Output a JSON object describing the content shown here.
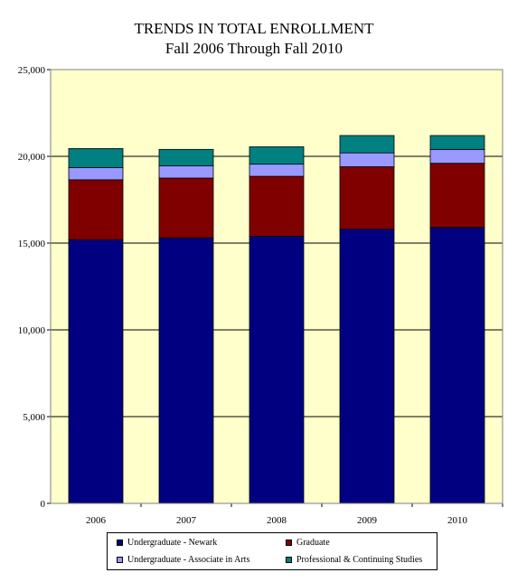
{
  "chart_data": {
    "type": "bar",
    "stacked": true,
    "title": "TRENDS IN TOTAL ENROLLMENT",
    "subtitle": "Fall 2006 Through Fall 2010",
    "categories": [
      "2006",
      "2007",
      "2008",
      "2009",
      "2010"
    ],
    "ylim": [
      0,
      25000
    ],
    "yticks": [
      0,
      5000,
      10000,
      15000,
      20000,
      25000
    ],
    "ytick_labels": [
      "0",
      "5,000",
      "10,000",
      "15,000",
      "20,000",
      "25,000"
    ],
    "grid": true,
    "legend_position": "bottom",
    "plot_background": "#FFFFCC",
    "series": [
      {
        "name": "Undergraduate - Newark",
        "color": "#000080",
        "values": [
          15200,
          15300,
          15400,
          15800,
          15900
        ]
      },
      {
        "name": "Graduate",
        "color": "#800000",
        "values": [
          3450,
          3450,
          3450,
          3600,
          3700
        ]
      },
      {
        "name": "Undergraduate - Associate in Arts",
        "color": "#9999FF",
        "values": [
          700,
          700,
          700,
          800,
          800
        ]
      },
      {
        "name": "Professional & Continuing Studies",
        "color": "#008080",
        "values": [
          1100,
          950,
          1000,
          1000,
          800
        ]
      }
    ]
  }
}
